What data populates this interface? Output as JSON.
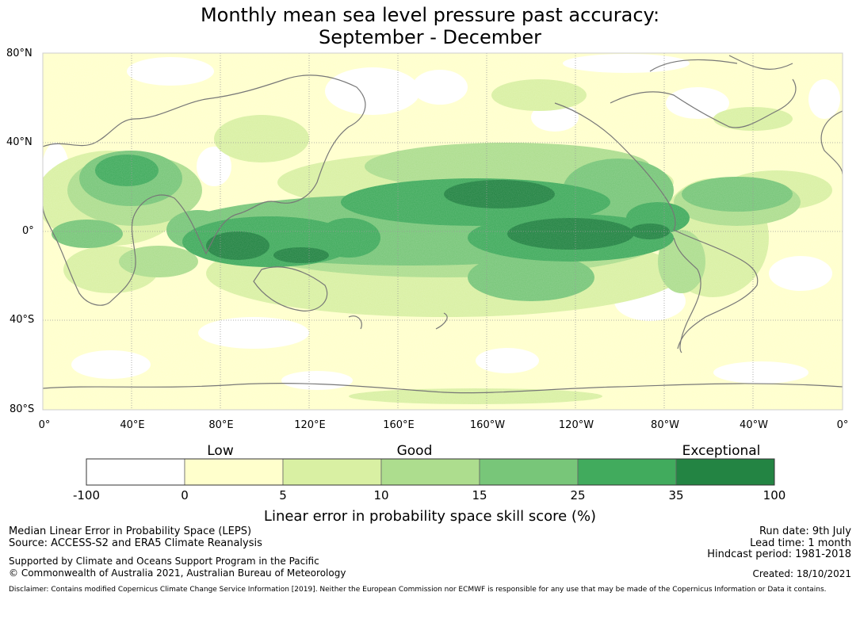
{
  "title_line1": "Monthly mean sea level pressure past accuracy:",
  "title_line2": "September - December",
  "map": {
    "lat_labels": [
      "80°N",
      "40°N",
      "0°",
      "40°S",
      "80°S"
    ],
    "lon_labels": [
      "0°",
      "40°E",
      "80°E",
      "120°E",
      "160°E",
      "160°W",
      "120°W",
      "80°W",
      "40°W",
      "0°"
    ],
    "colors": [
      "#ffffff",
      "#ffffcc",
      "#d9f0a3",
      "#addd8e",
      "#78c679",
      "#41ab5d",
      "#238443"
    ]
  },
  "colorbar": {
    "categories": [
      "Low",
      "Good",
      "Exceptional"
    ],
    "ticks": [
      "-100",
      "0",
      "5",
      "10",
      "15",
      "25",
      "35",
      "100"
    ],
    "title": "Linear error in probability space skill score (%)"
  },
  "footer": {
    "left1": "Median Linear Error in Probability Space (LEPS)",
    "left2": "Source: ACCESS-S2 and ERA5 Climate Reanalysis",
    "left3": "Supported by Climate and Oceans Support Program in the Pacific",
    "left4": "© Commonwealth of Australia 2021, Australian Bureau of Meteorology",
    "run_date": "Run date: 9th July",
    "lead_time": "Lead time: 1 month",
    "hindcast": "Hindcast period: 1981-2018",
    "created": "Created: 18/10/2021",
    "disclaimer": "Disclaimer: Contains modified Copernicus Climate Change Service Information [2019]. Neither the European Commission nor ECMWF is responsible for any use that may be made of the Copernicus Information or Data it contains."
  }
}
